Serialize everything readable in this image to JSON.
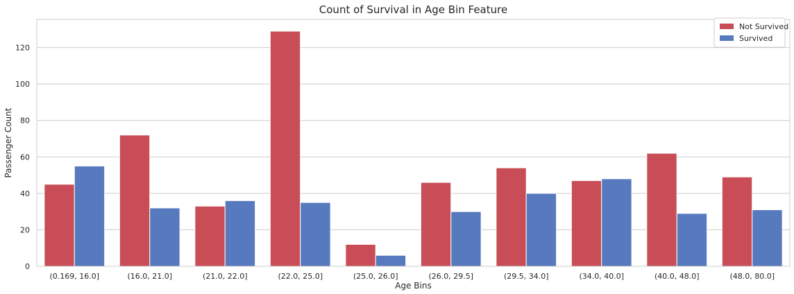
{
  "chart_data": {
    "type": "bar",
    "title": "Count of Survival in Age Bin Feature",
    "xlabel": "Age Bins",
    "ylabel": "Passenger Count",
    "categories": [
      "(0.169, 16.0]",
      "(16.0, 21.0]",
      "(21.0, 22.0]",
      "(22.0, 25.0]",
      "(25.0, 26.0]",
      "(26.0, 29.5]",
      "(29.5, 34.0]",
      "(34.0, 40.0]",
      "(40.0, 48.0]",
      "(48.0, 80.0]"
    ],
    "series": [
      {
        "name": "Not Survived",
        "color": "#c84d56",
        "values": [
          45,
          72,
          33,
          129,
          12,
          46,
          54,
          47,
          62,
          49
        ]
      },
      {
        "name": "Survived",
        "color": "#5779be",
        "values": [
          55,
          32,
          36,
          35,
          6,
          30,
          40,
          48,
          29,
          31
        ]
      }
    ],
    "ylim": [
      0,
      135.45
    ],
    "yticks": [
      0,
      20,
      40,
      60,
      80,
      100,
      120
    ],
    "grid": "horizontal",
    "legend_position": "top-right"
  }
}
